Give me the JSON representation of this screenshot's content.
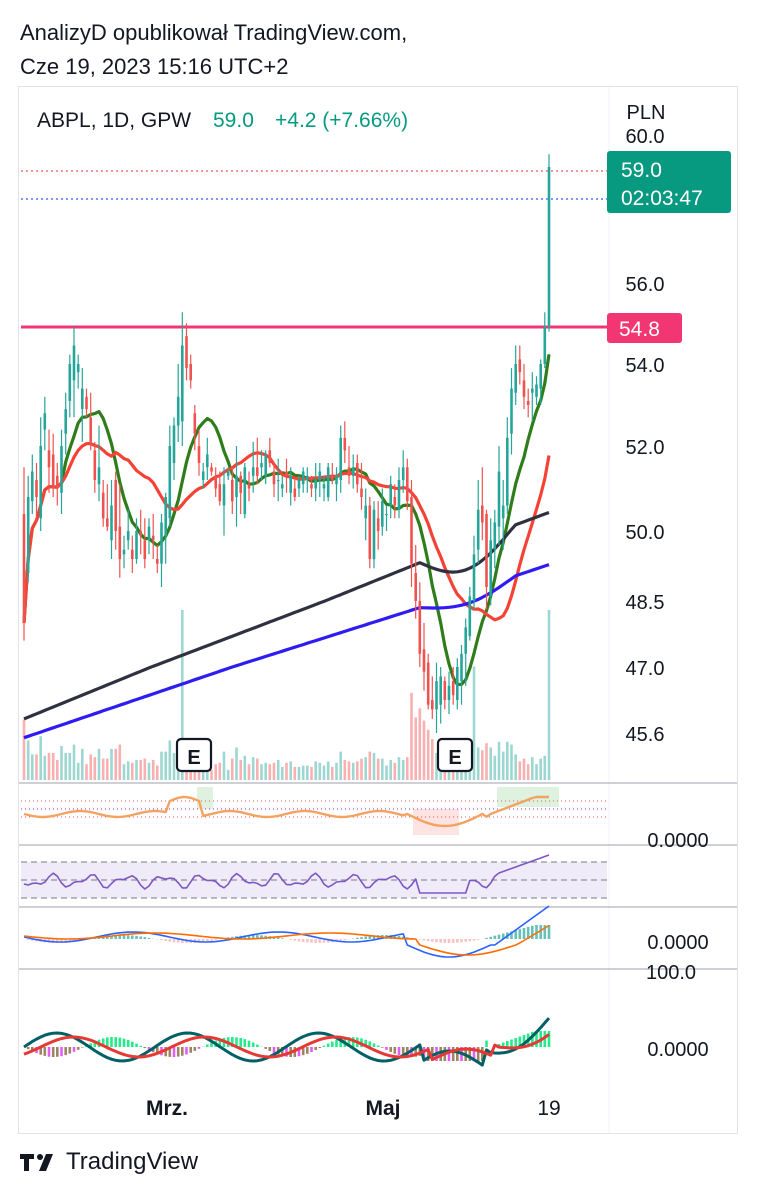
{
  "header": {
    "line1": "AnalizyD opublikował TradingView.com,",
    "line2": "Cze 19, 2023 15:16 UTC+2"
  },
  "footer": {
    "brand": "TradingView"
  },
  "colors": {
    "up": "#26a69a",
    "down": "#ef5350",
    "accent_green": "#089981",
    "resistance": "#f23673",
    "ma_short": "#2e7d1a",
    "ma_mid": "#f44336",
    "ma_long_dark": "#2f3140",
    "ma_long_blue": "#2e1cf2"
  },
  "chart_data": {
    "type": "candlestick",
    "symbol_line": {
      "symbol": "ABPL, 1D, GPW",
      "last": "59.0",
      "change": "+4.2 (+7.66%)"
    },
    "currency": "PLN",
    "y_ticks": [
      "60.0",
      "56.0",
      "54.0",
      "52.0",
      "50.0",
      "48.5",
      "47.0",
      "45.6"
    ],
    "price_label": {
      "price": "59.0",
      "countdown": "02:03:47"
    },
    "resistance": {
      "label": "54.8",
      "value": 54.8
    },
    "x_ticks": [
      "Mrz.",
      "Maj",
      "19"
    ],
    "earnings_markers": [
      "E",
      "E"
    ],
    "indicator_axis_labels": [
      "0.0000",
      "0.0000",
      "100.0",
      "0.0000"
    ],
    "ohlc_rows": [
      [
        50.4,
        51.5,
        47.6,
        48.0
      ],
      [
        49.1,
        51.3,
        48.9,
        50.8
      ],
      [
        50.7,
        51.8,
        50.4,
        51.4
      ],
      [
        51.2,
        51.6,
        50.2,
        50.8
      ],
      [
        50.3,
        52.7,
        50.0,
        52.0
      ],
      [
        52.4,
        53.2,
        51.9,
        52.8
      ],
      [
        51.9,
        52.4,
        50.9,
        51.5
      ],
      [
        51.8,
        52.3,
        50.8,
        51.0
      ],
      [
        51.3,
        51.6,
        50.6,
        51.0
      ],
      [
        50.9,
        52.4,
        50.4,
        52.0
      ],
      [
        52.3,
        53.3,
        51.8,
        52.9
      ],
      [
        53.1,
        54.2,
        52.7,
        54.0
      ],
      [
        53.6,
        54.8,
        52.7,
        54.4
      ],
      [
        53.8,
        54.2,
        53.4,
        54.0
      ],
      [
        52.9,
        53.9,
        52.1,
        53.4
      ],
      [
        53.2,
        53.4,
        52.7,
        52.9
      ],
      [
        52.7,
        53.3,
        51.9,
        52.1
      ],
      [
        51.9,
        52.1,
        50.9,
        51.2
      ],
      [
        51.1,
        52.5,
        50.7,
        51.5
      ],
      [
        50.9,
        51.2,
        50.1,
        50.3
      ],
      [
        50.3,
        51.1,
        50.0,
        50.1
      ],
      [
        49.8,
        51.2,
        49.4,
        50.6
      ],
      [
        51.2,
        51.4,
        49.6,
        50.0
      ],
      [
        50.1,
        51.1,
        49.0,
        49.4
      ],
      [
        49.5,
        49.9,
        49.2,
        49.6
      ],
      [
        49.8,
        50.5,
        49.6,
        50.0
      ],
      [
        49.6,
        49.9,
        49.1,
        49.4
      ],
      [
        49.4,
        50.3,
        49.3,
        50.0
      ],
      [
        50.0,
        50.5,
        49.5,
        49.9
      ],
      [
        49.8,
        50.3,
        49.2,
        49.4
      ],
      [
        49.8,
        50.3,
        49.5,
        50.1
      ],
      [
        49.9,
        50.4,
        49.4,
        49.8
      ],
      [
        49.4,
        49.7,
        49.1,
        49.3
      ],
      [
        49.3,
        50.4,
        48.8,
        50.2
      ],
      [
        49.9,
        50.9,
        49.3,
        50.8
      ],
      [
        50.3,
        52.5,
        50.1,
        52.0
      ],
      [
        51.6,
        52.7,
        51.2,
        52.5
      ],
      [
        52.5,
        54.0,
        52.1,
        53.2
      ],
      [
        52.6,
        55.2,
        52.0,
        54.4
      ],
      [
        54.6,
        54.9,
        53.6,
        53.9
      ],
      [
        54.0,
        54.2,
        53.4,
        53.6
      ],
      [
        52.8,
        53.0,
        51.9,
        52.3
      ],
      [
        52.0,
        52.4,
        51.3,
        51.6
      ],
      [
        51.2,
        51.6,
        51.0,
        51.4
      ],
      [
        51.5,
        52.2,
        51.2,
        51.8
      ],
      [
        51.5,
        51.6,
        51.3,
        51.4
      ],
      [
        51.3,
        51.5,
        50.8,
        51.0
      ],
      [
        51.1,
        51.4,
        50.6,
        50.7
      ],
      [
        50.6,
        51.5,
        49.9,
        51.1
      ],
      [
        51.3,
        51.5,
        51.2,
        51.4
      ],
      [
        51.2,
        51.5,
        50.4,
        50.7
      ],
      [
        50.8,
        52.0,
        50.1,
        51.3
      ],
      [
        51.3,
        51.4,
        50.4,
        50.9
      ],
      [
        50.4,
        51.6,
        50.3,
        51.5
      ],
      [
        51.1,
        51.4,
        50.7,
        51.0
      ],
      [
        51.3,
        52.1,
        50.9,
        51.5
      ],
      [
        51.5,
        52.2,
        51.1,
        51.3
      ],
      [
        51.5,
        51.9,
        51.2,
        51.6
      ],
      [
        51.3,
        51.9,
        51.1,
        51.8
      ],
      [
        51.9,
        52.2,
        51.5,
        51.6
      ],
      [
        51.4,
        51.6,
        50.8,
        51.1
      ],
      [
        51.2,
        51.7,
        50.7,
        51.2
      ],
      [
        51.0,
        51.3,
        50.8,
        51.1
      ],
      [
        51.4,
        51.7,
        50.9,
        51.3
      ],
      [
        50.9,
        51.5,
        50.6,
        51.3
      ],
      [
        51.0,
        51.2,
        50.7,
        50.8
      ],
      [
        51.0,
        51.3,
        50.8,
        51.2
      ],
      [
        51.1,
        51.5,
        50.9,
        51.4
      ],
      [
        51.2,
        51.5,
        50.9,
        51.3
      ],
      [
        51.1,
        51.3,
        50.8,
        51.0
      ],
      [
        51.0,
        51.6,
        50.7,
        51.2
      ],
      [
        51.2,
        51.6,
        50.8,
        51.4
      ],
      [
        51.0,
        51.3,
        50.7,
        51.1
      ],
      [
        50.8,
        51.6,
        50.7,
        51.5
      ],
      [
        51.3,
        51.6,
        51.1,
        51.2
      ],
      [
        51.1,
        51.5,
        50.7,
        51.3
      ],
      [
        51.2,
        52.5,
        50.9,
        52.2
      ],
      [
        52.2,
        52.6,
        51.6,
        51.9
      ],
      [
        51.5,
        52.0,
        51.1,
        51.3
      ],
      [
        51.3,
        51.8,
        51.0,
        51.5
      ],
      [
        51.6,
        51.8,
        50.9,
        51.1
      ],
      [
        51.0,
        51.6,
        50.5,
        50.8
      ],
      [
        50.3,
        51.0,
        49.8,
        50.6
      ],
      [
        50.6,
        50.8,
        49.2,
        49.4
      ],
      [
        49.4,
        50.7,
        49.2,
        50.5
      ],
      [
        50.3,
        50.7,
        49.6,
        50.0
      ],
      [
        50.1,
        51.0,
        49.9,
        50.7
      ],
      [
        50.4,
        50.6,
        50.0,
        50.4
      ],
      [
        50.6,
        51.3,
        50.3,
        51.1
      ],
      [
        50.8,
        51.1,
        50.3,
        50.6
      ],
      [
        50.5,
        51.5,
        50.3,
        51.2
      ],
      [
        51.2,
        51.9,
        50.9,
        51.5
      ],
      [
        51.5,
        51.7,
        50.5,
        50.7
      ],
      [
        50.8,
        51.2,
        48.8,
        49.3
      ],
      [
        49.1,
        49.7,
        48.1,
        48.5
      ],
      [
        48.5,
        48.9,
        47.0,
        47.3
      ],
      [
        47.4,
        48.0,
        46.5,
        46.9
      ],
      [
        47.1,
        47.3,
        46.1,
        46.2
      ],
      [
        46.3,
        46.8,
        45.9,
        46.1
      ],
      [
        46.1,
        47.1,
        45.6,
        46.7
      ],
      [
        46.2,
        47.0,
        45.8,
        46.8
      ],
      [
        46.7,
        46.8,
        46.1,
        46.3
      ],
      [
        46.3,
        46.9,
        46.0,
        46.6
      ],
      [
        46.7,
        47.0,
        46.2,
        46.4
      ],
      [
        46.3,
        47.2,
        46.1,
        47.0
      ],
      [
        46.7,
        47.5,
        46.2,
        47.3
      ],
      [
        47.3,
        48.1,
        46.6,
        47.9
      ],
      [
        47.7,
        48.8,
        47.6,
        48.6
      ],
      [
        48.5,
        49.9,
        48.3,
        49.5
      ],
      [
        49.6,
        51.2,
        49.3,
        50.5
      ],
      [
        50.6,
        51.5,
        49.8,
        50.2
      ],
      [
        50.4,
        50.5,
        48.3,
        48.8
      ],
      [
        48.6,
        50.3,
        48.4,
        49.8
      ],
      [
        49.6,
        50.5,
        49.2,
        50.2
      ],
      [
        50.1,
        52.0,
        49.7,
        51.4
      ],
      [
        50.3,
        51.2,
        49.6,
        50.6
      ],
      [
        50.6,
        52.7,
        50.4,
        52.2
      ],
      [
        52.3,
        53.9,
        51.8,
        53.4
      ],
      [
        53.3,
        54.4,
        53.0,
        54.0
      ],
      [
        54.1,
        54.4,
        53.5,
        53.8
      ],
      [
        53.6,
        54.0,
        52.9,
        53.2
      ],
      [
        53.1,
        53.4,
        52.7,
        53.0
      ],
      [
        53.3,
        53.8,
        52.6,
        53.4
      ],
      [
        53.2,
        53.7,
        53.0,
        53.5
      ],
      [
        53.4,
        54.1,
        53.0,
        54.0
      ],
      [
        54.0,
        55.2,
        53.9,
        54.8
      ],
      [
        54.8,
        59.4,
        54.7,
        59.0
      ]
    ]
  }
}
